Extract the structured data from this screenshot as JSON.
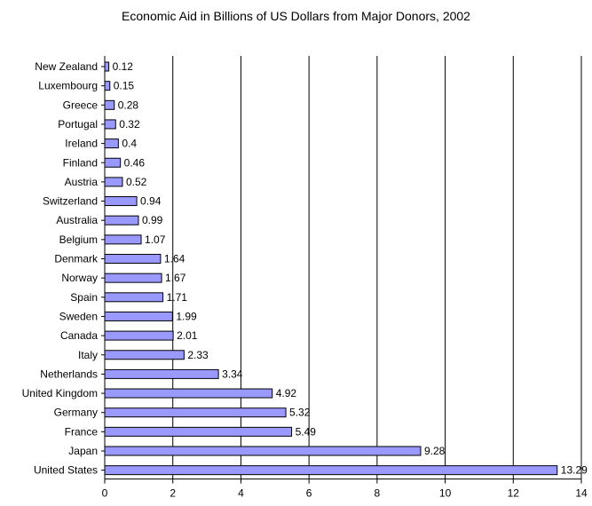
{
  "chart_data": {
    "type": "bar",
    "orientation": "horizontal",
    "title": "Economic Aid in Billions of US Dollars from Major Donors, 2002",
    "xlabel": "",
    "ylabel": "",
    "categories": [
      "New Zealand",
      "Luxembourg",
      "Greece",
      "Portugal",
      "Ireland",
      "Finland",
      "Austria",
      "Switzerland",
      "Australia",
      "Belgium",
      "Denmark",
      "Norway",
      "Spain",
      "Sweden",
      "Canada",
      "Italy",
      "Netherlands",
      "United Kingdom",
      "Germany",
      "France",
      "Japan",
      "United States"
    ],
    "values": [
      0.12,
      0.15,
      0.28,
      0.32,
      0.4,
      0.46,
      0.52,
      0.94,
      0.99,
      1.07,
      1.64,
      1.67,
      1.71,
      1.99,
      2.01,
      2.33,
      3.34,
      4.92,
      5.32,
      5.49,
      9.28,
      13.29
    ],
    "value_labels": [
      "0.12",
      "0.15",
      "0.28",
      "0.32",
      "0.4",
      "0.46",
      "0.52",
      "0.94",
      "0.99",
      "1.07",
      "1.64",
      "1.67",
      "1.71",
      "1.99",
      "2.01",
      "2.33",
      "3.34",
      "4.92",
      "5.32",
      "5.49",
      "9.28",
      "13.29"
    ],
    "xlim": [
      0,
      14
    ],
    "xticks": [
      0,
      2,
      4,
      6,
      8,
      10,
      12,
      14
    ],
    "grid": "vertical",
    "bar_color": "#9999ff",
    "bar_edge_color": "#000000",
    "grid_color": "#000000"
  }
}
